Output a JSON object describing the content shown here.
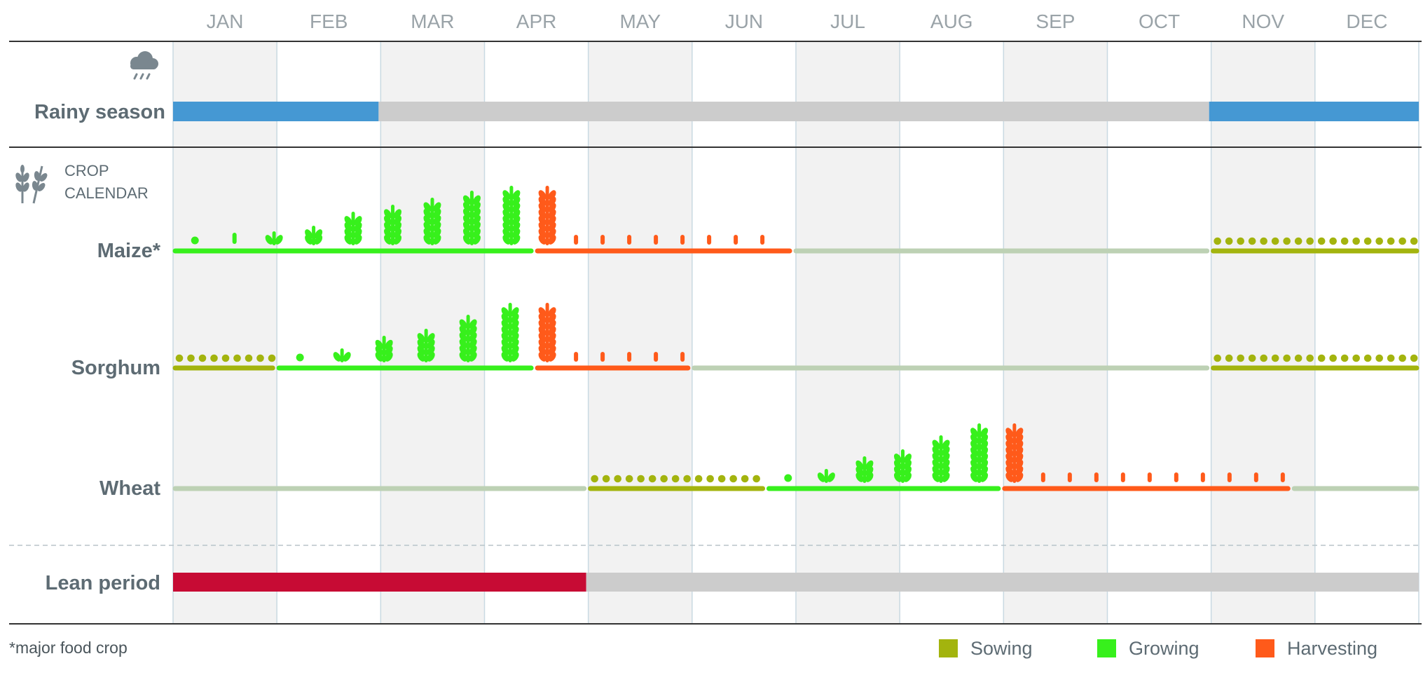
{
  "chart_data": {
    "type": "table",
    "months": [
      "JAN",
      "FEB",
      "MAR",
      "APR",
      "MAY",
      "JUN",
      "JUL",
      "AUG",
      "SEP",
      "OCT",
      "NOV",
      "DEC"
    ],
    "colors": {
      "sowing": "#a3b40e",
      "growing": "#37f01c",
      "harvesting": "#ff5a1a",
      "rainy": "#4598d3",
      "lean": "#c70b34",
      "off_season": "#bdd1b4",
      "inactive": "#cccccc",
      "shade": "#f2f2f2",
      "gridline": "#c9d9e2",
      "label": "#5d6b73"
    },
    "rainy_season": {
      "label": "Rainy season",
      "icon": "rain-cloud-icon",
      "segments": [
        {
          "start": 0.0,
          "end": 1.98,
          "phase": "rainy"
        },
        {
          "start": 1.98,
          "end": 9.98,
          "phase": "inactive"
        },
        {
          "start": 9.98,
          "end": 12.0,
          "phase": "rainy"
        }
      ]
    },
    "crop_calendar": {
      "title_line1": "CROP",
      "title_line2": "CALENDAR",
      "icon": "wheat-icon",
      "crops": [
        {
          "label": "Maize*",
          "segments": [
            {
              "start": 0.0,
              "end": 3.47,
              "phase": "growing"
            },
            {
              "start": 3.49,
              "end": 5.96,
              "phase": "harvesting"
            },
            {
              "start": 5.98,
              "end": 9.98,
              "phase": "off_season"
            },
            {
              "start": 10.0,
              "end": 12.0,
              "phase": "sowing"
            }
          ]
        },
        {
          "label": "Sorghum",
          "segments": [
            {
              "start": 0.0,
              "end": 0.98,
              "phase": "sowing"
            },
            {
              "start": 1.0,
              "end": 3.47,
              "phase": "growing"
            },
            {
              "start": 3.49,
              "end": 4.98,
              "phase": "harvesting"
            },
            {
              "start": 5.0,
              "end": 9.98,
              "phase": "off_season"
            },
            {
              "start": 10.0,
              "end": 12.0,
              "phase": "sowing"
            }
          ]
        },
        {
          "label": "Wheat",
          "segments": [
            {
              "start": 0.0,
              "end": 3.98,
              "phase": "off_season"
            },
            {
              "start": 4.0,
              "end": 5.7,
              "phase": "sowing"
            },
            {
              "start": 5.72,
              "end": 7.97,
              "phase": "growing"
            },
            {
              "start": 7.99,
              "end": 10.76,
              "phase": "harvesting"
            },
            {
              "start": 10.78,
              "end": 12.0,
              "phase": "off_season"
            }
          ]
        }
      ]
    },
    "lean_period": {
      "label": "Lean period",
      "segments": [
        {
          "start": 0.0,
          "end": 3.98,
          "phase": "lean"
        },
        {
          "start": 3.98,
          "end": 12.0,
          "phase": "inactive"
        }
      ]
    },
    "legend": [
      {
        "label": "Sowing",
        "phase": "sowing"
      },
      {
        "label": "Growing",
        "phase": "growing"
      },
      {
        "label": "Harvesting",
        "phase": "harvesting"
      }
    ],
    "footnote": "*major food crop"
  }
}
